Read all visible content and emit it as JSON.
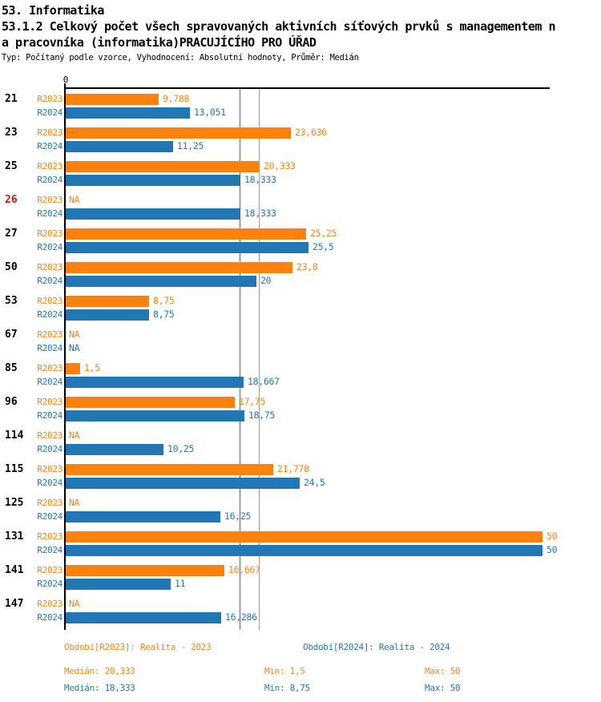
{
  "header": {
    "title_line1": "53. Informatika",
    "title_line2": "53.1.2 Celkový počet všech spravovaných aktivních síťových prvků s managementem n",
    "title_line3": "a pracovníka (informatika)PRACUJÍCÍHO PRO ÚŘAD",
    "meta": "Typ: Počítaný podle vzorce, Vyhodnocení: Absolutní hodnoty, Průměr: Medián"
  },
  "colors": {
    "r2023": "#fd810d",
    "r2024": "#2077b4",
    "highlight_category": "#e01010",
    "axis": "#000000"
  },
  "axis": {
    "zero_label": "0",
    "xlim": [
      0,
      50
    ]
  },
  "chart_data": {
    "type": "bar",
    "orientation": "horizontal",
    "title": "53.1.2 Celkový počet všech spravovaných aktivních síťových prvků s managementem na pracovníka (informatika) PRACUJÍCÍHO PRO ÚŘAD",
    "xlabel": "",
    "ylabel": "",
    "xlim": [
      0,
      50
    ],
    "grid": false,
    "categories": [
      "21",
      "23",
      "25",
      "26",
      "27",
      "50",
      "53",
      "67",
      "85",
      "96",
      "114",
      "115",
      "125",
      "131",
      "141",
      "147"
    ],
    "highlighted_categories": [
      "26"
    ],
    "na_text": "NA",
    "series": [
      {
        "name": "R2023",
        "color": "#fd810d",
        "values": [
          9.788,
          23.636,
          20.333,
          null,
          25.25,
          23.8,
          8.75,
          null,
          1.5,
          17.75,
          null,
          21.778,
          null,
          50,
          16.667,
          null
        ],
        "labels": [
          "9,788",
          "23,636",
          "20,333",
          "NA",
          "25,25",
          "23,8",
          "8,75",
          "NA",
          "1,5",
          "17,75",
          "NA",
          "21,778",
          "NA",
          "50",
          "16,667",
          "NA"
        ]
      },
      {
        "name": "R2024",
        "color": "#2077b4",
        "values": [
          13.051,
          11.25,
          18.333,
          18.333,
          25.5,
          20,
          8.75,
          null,
          18.667,
          18.75,
          10.25,
          24.5,
          16.25,
          50,
          11,
          16.286
        ],
        "labels": [
          "13,051",
          "11,25",
          "18,333",
          "18,333",
          "25,5",
          "20",
          "8,75",
          "NA",
          "18,667",
          "18,75",
          "10,25",
          "24,5",
          "16,25",
          "50",
          "11",
          "16,286"
        ]
      }
    ],
    "reference_lines": [
      {
        "series": "R2024",
        "label": "Medián R2024",
        "value": 18.333,
        "color": "#2077b4"
      },
      {
        "series": "R2023",
        "label": "Medián R2023",
        "value": 20.333,
        "color": "#fd810d"
      }
    ]
  },
  "legend": {
    "r2023": "Období[R2023]: Realita - 2023",
    "r2024": "Období[R2024]: Realita - 2024"
  },
  "stats": {
    "r2023": {
      "median": "Medián: 20,333",
      "min": "Min: 1,5",
      "max": "Max: 50"
    },
    "r2024": {
      "median": "Medián: 18,333",
      "min": "Min: 8,75",
      "max": "Max: 50"
    }
  }
}
